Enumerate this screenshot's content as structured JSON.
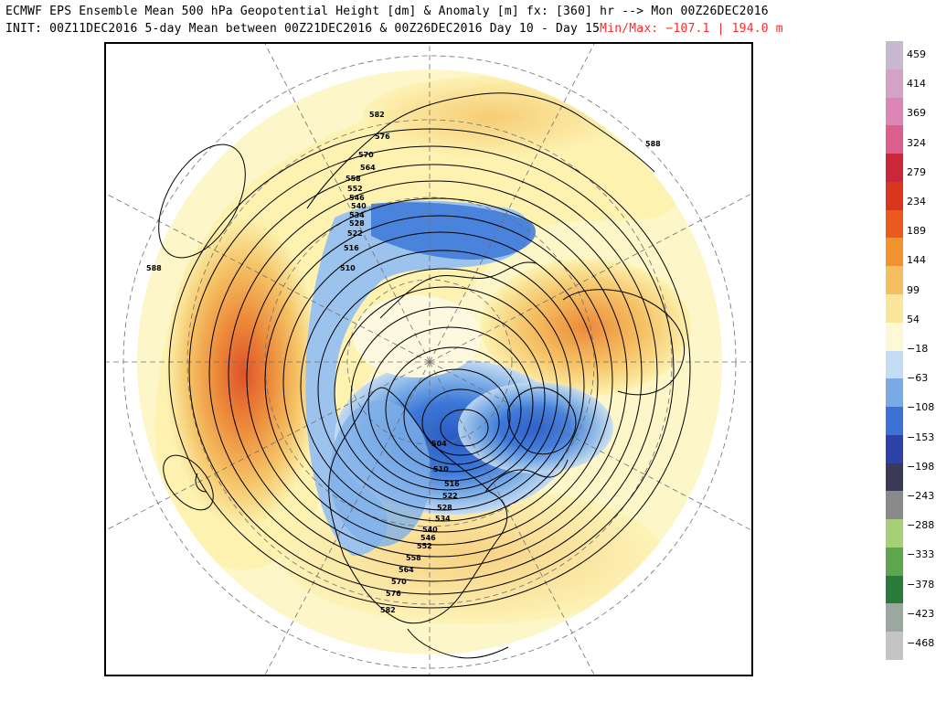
{
  "header": {
    "line1": "ECMWF EPS Ensemble Mean 500 hPa Geopotential Height [dm] & Anomaly [m] fx: [360] hr --> Mon 00Z26DEC2016",
    "line2_left": "INIT: 00Z11DEC2016 5-day Mean between 00Z21DEC2016 & 00Z26DEC2016   Day 10 - Day 15",
    "line2_right": "Min/Max: −107.1 | 194.0 m"
  },
  "map": {
    "contour_labels": [
      "582",
      "576",
      "570",
      "564",
      "558",
      "552",
      "546",
      "540",
      "534",
      "528",
      "522",
      "516",
      "510",
      "504",
      "588"
    ],
    "colors": {
      "land_outline": "#000000",
      "contour": "#000000",
      "graticule": "#707070",
      "warm_weak": "#fdf2b0",
      "warm_mid": "#f5c265",
      "warm_strong": "#ec8a3a",
      "warm_extreme": "#e0522a",
      "cold_weak": "#c6dcf2",
      "cold_mid": "#7fb0e8",
      "cold_strong": "#3c78d8",
      "cold_extreme": "#2a5bc4"
    }
  },
  "colorbar": {
    "labels": [
      "459",
      "414",
      "369",
      "324",
      "279",
      "234",
      "189",
      "144",
      "99",
      "54",
      "−18",
      "−63",
      "−108",
      "−153",
      "−198",
      "−243",
      "−288",
      "−333",
      "−378",
      "−423",
      "−468"
    ],
    "colors": [
      "#c8b8d0",
      "#d4a2c6",
      "#dc86b6",
      "#dc5e8c",
      "#c8283a",
      "#d8361e",
      "#ea5a1e",
      "#f0922e",
      "#f4bf5e",
      "#fae69a",
      "#fdf8d6",
      "#c4dcf4",
      "#7aaae6",
      "#3c72d6",
      "#2c42a6",
      "#3a3a56",
      "#8a8a8a",
      "#a6cf76",
      "#5da64e",
      "#2a7a3a",
      "#9aa8a0",
      "#c4c4c4"
    ]
  }
}
